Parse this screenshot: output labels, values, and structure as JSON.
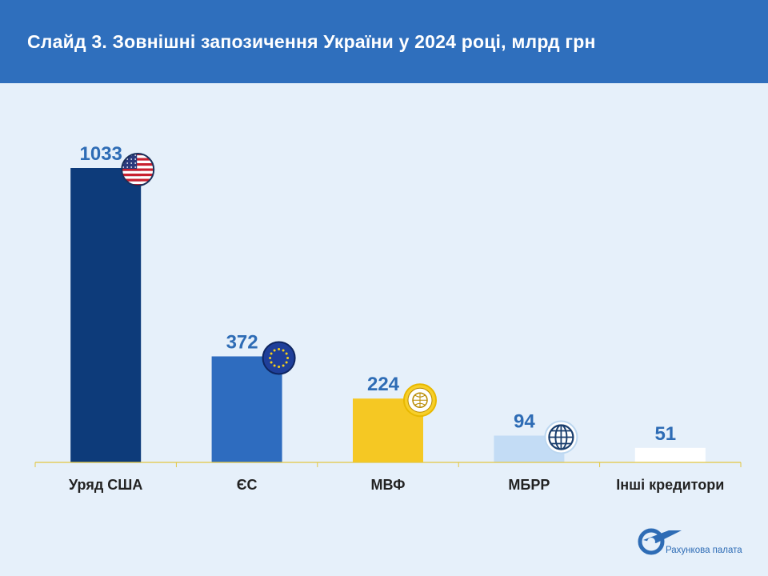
{
  "header": {
    "title": "Слайд 3. Зовнішні запозичення України у 2024 році, млрд грн"
  },
  "chart_data": {
    "type": "bar",
    "title": "",
    "xlabel": "",
    "ylabel": "",
    "categories": [
      "Уряд США",
      "ЄС",
      "МВФ",
      "МБРР",
      "Інші кредитори"
    ],
    "values": [
      1033,
      372,
      224,
      94,
      51
    ],
    "ylim": [
      0,
      1033
    ],
    "grid": false,
    "legend": "none",
    "colors": [
      "#0d3b7a",
      "#2e6cbf",
      "#f5c823",
      "#c3dcf5",
      "#ffffff"
    ],
    "icons": [
      "us-flag-icon",
      "eu-flag-icon",
      "imf-seal-icon",
      "world-bank-globe-icon",
      ""
    ]
  },
  "logo": {
    "text": "Рахункова палата"
  },
  "colors": {
    "header": "#2f6fbd",
    "background": "#e6f0fa",
    "value_label": "#2e6cb5",
    "axis": "#e2c640"
  }
}
